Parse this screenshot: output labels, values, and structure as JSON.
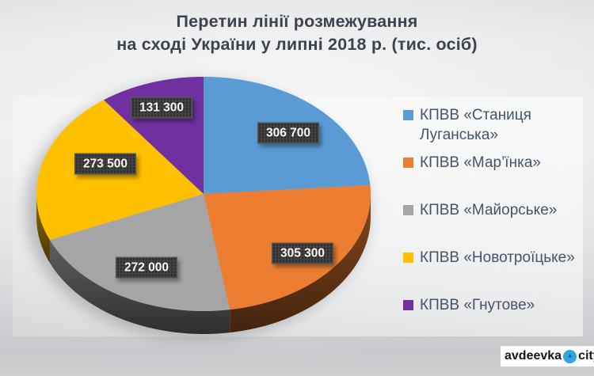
{
  "title": {
    "line1": "Перетин лінії розмежування",
    "line2": "на сході України у липні 2018 р. (тис. осіб)"
  },
  "chart_data": {
    "type": "pie",
    "style": "3d",
    "title": "Перетин лінії розмежування на сході України у липні 2018 р. (тис. осіб)",
    "unit_note": "тис. осіб",
    "direction": "clockwise",
    "start_angle_deg": 0,
    "legend_position": "right",
    "total": 1288800,
    "series": [
      {
        "name": "КПВВ «Станиця Луганська»",
        "value": 306700,
        "label": "306 700",
        "color": "#5B9BD5"
      },
      {
        "name": "КПВВ «Мар’їнка»",
        "value": 305300,
        "label": "305 300",
        "color": "#ED7D31"
      },
      {
        "name": "КПВВ «Майорське»",
        "value": 272000,
        "label": "272 000",
        "color": "#A5A5A5"
      },
      {
        "name": "КПВВ «Новотроїцьке»",
        "value": 273500,
        "label": "273 500",
        "color": "#FFC000"
      },
      {
        "name": "КПВВ «Гнутове»",
        "value": 131300,
        "label": "131 300",
        "color": "#7030A0"
      }
    ],
    "legend_text_color": "#44546A"
  },
  "watermark": {
    "name": "avdeevka",
    "suffix": "city",
    "logo": "avdeevka-circle-triangle-icon",
    "logo_color": "#2EA7E0"
  }
}
